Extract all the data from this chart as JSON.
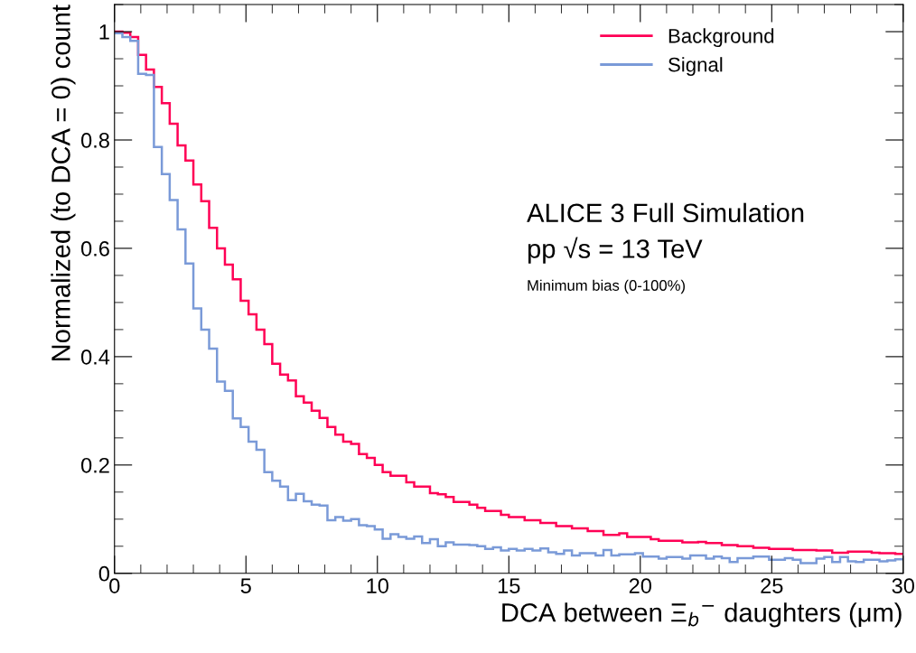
{
  "chart_data": {
    "type": "histogram",
    "xlabel": "DCA between Ξ$_{b}$$^{−}$ daughters (μm)",
    "ylabel": "Normalized (to DCA = 0) count",
    "bins": [
      0.0,
      0.3,
      0.6,
      0.9,
      1.2,
      1.5,
      1.8,
      2.1,
      2.4,
      2.7,
      3.0,
      3.3,
      3.6,
      3.9,
      4.2,
      4.5,
      4.8,
      5.1,
      5.4,
      5.7,
      6.0,
      6.3,
      6.6,
      6.9,
      7.2,
      7.5,
      7.8,
      8.1,
      8.4,
      8.7,
      9.0,
      9.3,
      9.6,
      9.9,
      10.2,
      10.5,
      10.8,
      11.1,
      11.4,
      11.7,
      12.0,
      12.3,
      12.6,
      12.9,
      13.2,
      13.5,
      13.8,
      14.1,
      14.4,
      14.7,
      15.0,
      15.3,
      15.6,
      15.9,
      16.2,
      16.5,
      16.8,
      17.1,
      17.4,
      17.7,
      18.0,
      18.3,
      18.6,
      18.9,
      19.2,
      19.5,
      19.8,
      20.1,
      20.4,
      20.7,
      21.0,
      21.3,
      21.6,
      21.9,
      22.2,
      22.5,
      22.8,
      23.1,
      23.4,
      23.7,
      24.0,
      24.3,
      24.6,
      24.9,
      25.2,
      25.5,
      25.8,
      26.1,
      26.4,
      26.7,
      27.0,
      27.3,
      27.6,
      27.9,
      28.2,
      28.5,
      28.8,
      29.1,
      29.4,
      29.7,
      30.0
    ],
    "series": [
      {
        "name": "Background",
        "color": "#ff0055",
        "values": [
          1.0,
          0.998,
          0.99,
          0.957,
          0.93,
          0.898,
          0.868,
          0.83,
          0.79,
          0.762,
          0.718,
          0.687,
          0.638,
          0.6,
          0.57,
          0.543,
          0.503,
          0.478,
          0.45,
          0.423,
          0.387,
          0.367,
          0.356,
          0.327,
          0.315,
          0.3,
          0.287,
          0.27,
          0.256,
          0.243,
          0.239,
          0.22,
          0.213,
          0.2,
          0.187,
          0.18,
          0.18,
          0.168,
          0.16,
          0.16,
          0.148,
          0.146,
          0.141,
          0.132,
          0.132,
          0.127,
          0.121,
          0.115,
          0.115,
          0.108,
          0.104,
          0.104,
          0.098,
          0.098,
          0.093,
          0.093,
          0.087,
          0.087,
          0.083,
          0.083,
          0.078,
          0.078,
          0.071,
          0.071,
          0.074,
          0.067,
          0.067,
          0.067,
          0.063,
          0.06,
          0.06,
          0.06,
          0.057,
          0.057,
          0.058,
          0.056,
          0.056,
          0.052,
          0.052,
          0.05,
          0.05,
          0.047,
          0.047,
          0.045,
          0.045,
          0.045,
          0.043,
          0.043,
          0.043,
          0.042,
          0.042,
          0.038,
          0.038,
          0.04,
          0.04,
          0.04,
          0.038,
          0.037,
          0.037,
          0.036
        ]
      },
      {
        "name": "Signal",
        "color": "#7a9ad8",
        "values": [
          0.997,
          0.99,
          0.983,
          0.922,
          0.92,
          0.787,
          0.737,
          0.689,
          0.635,
          0.572,
          0.489,
          0.45,
          0.415,
          0.354,
          0.337,
          0.286,
          0.27,
          0.243,
          0.228,
          0.187,
          0.171,
          0.16,
          0.135,
          0.147,
          0.133,
          0.127,
          0.125,
          0.098,
          0.104,
          0.097,
          0.1,
          0.089,
          0.087,
          0.081,
          0.064,
          0.072,
          0.067,
          0.064,
          0.068,
          0.056,
          0.063,
          0.05,
          0.057,
          0.053,
          0.053,
          0.052,
          0.05,
          0.045,
          0.048,
          0.042,
          0.045,
          0.042,
          0.045,
          0.042,
          0.046,
          0.039,
          0.036,
          0.042,
          0.033,
          0.037,
          0.037,
          0.033,
          0.043,
          0.033,
          0.035,
          0.035,
          0.037,
          0.031,
          0.031,
          0.027,
          0.03,
          0.03,
          0.027,
          0.033,
          0.033,
          0.027,
          0.031,
          0.028,
          0.021,
          0.028,
          0.028,
          0.031,
          0.031,
          0.025,
          0.025,
          0.028,
          0.025,
          0.019,
          0.019,
          0.027,
          0.03,
          0.021,
          0.03,
          0.022,
          0.021,
          0.025,
          0.025,
          0.022,
          0.024,
          0.026
        ]
      }
    ],
    "xlim": [
      0,
      30
    ],
    "xticks": [
      0,
      5,
      10,
      15,
      20,
      25,
      30
    ],
    "ylim": [
      0,
      1.05
    ],
    "yticks": [
      0,
      0.2,
      0.4,
      0.6,
      0.8,
      1
    ],
    "legend": "top right",
    "grid": false,
    "annotations": [
      "ALICE 3 Full Simulation",
      "pp √s = 13 TeV",
      "Minimum bias (0-100%)"
    ]
  }
}
